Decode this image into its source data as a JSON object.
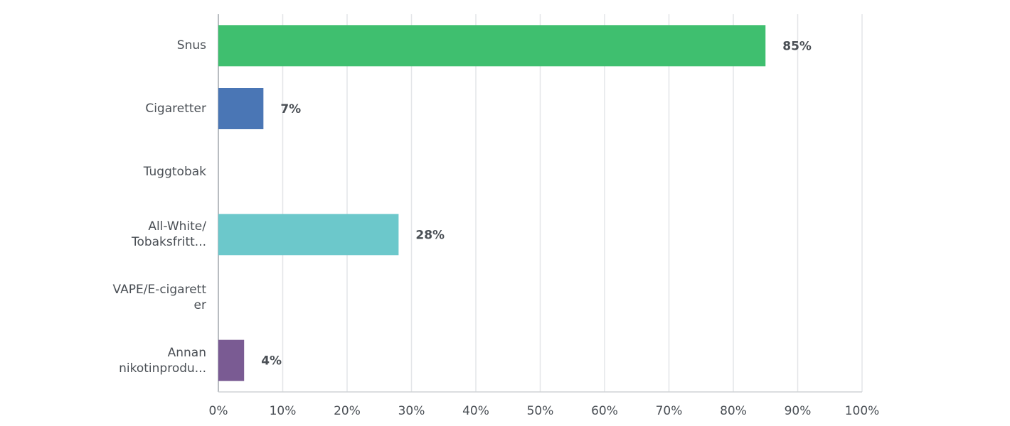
{
  "chart_data": {
    "type": "hbar",
    "categories": [
      "Snus",
      "Cigaretter",
      "Tuggtobak",
      "All-White/\nTobaksfritt...",
      "VAPE/E-cigarett\ner",
      "Annan\nnikotinprodu..."
    ],
    "values": [
      85,
      7,
      null,
      28,
      null,
      4
    ],
    "value_labels": [
      "85%",
      "7%",
      null,
      "28%",
      null,
      "4%"
    ],
    "colors": [
      "#3fbf6f",
      "#4a76b5",
      "#6cc8cb",
      "#6cc8cb",
      "#6cc8cb",
      "#7a5b93"
    ],
    "xlim": [
      0,
      100
    ],
    "xticks": [
      {
        "value": 0,
        "label": "0%"
      },
      {
        "value": 10,
        "label": "10%"
      },
      {
        "value": 20,
        "label": "20%"
      },
      {
        "value": 30,
        "label": "30%"
      },
      {
        "value": 40,
        "label": "40%"
      },
      {
        "value": 50,
        "label": "50%"
      },
      {
        "value": 60,
        "label": "60%"
      },
      {
        "value": 70,
        "label": "70%"
      },
      {
        "value": 80,
        "label": "80%"
      },
      {
        "value": 90,
        "label": "90%"
      },
      {
        "value": 100,
        "label": "100%"
      }
    ],
    "grid": true
  }
}
